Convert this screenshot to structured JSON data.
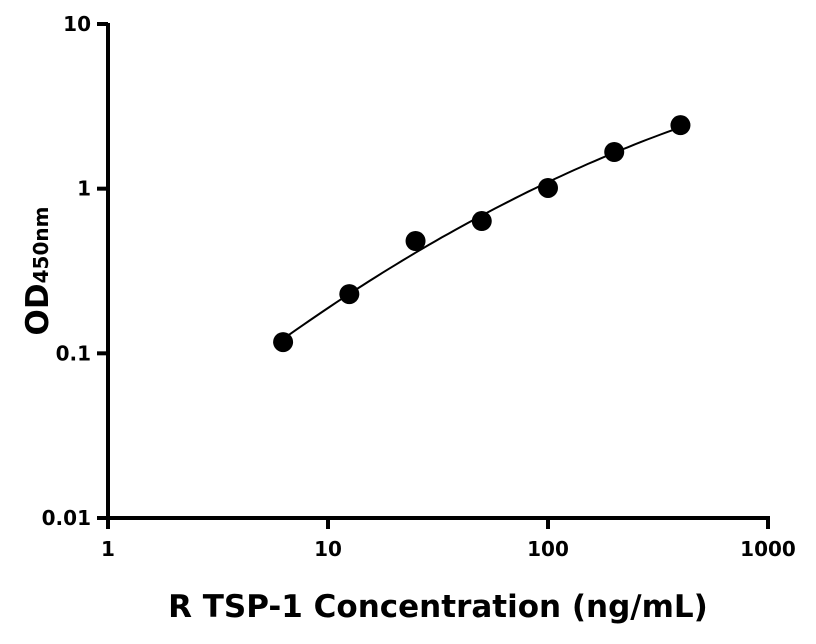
{
  "chart_data": {
    "type": "scatter",
    "title": "",
    "xlabel": "R TSP-1 Concentration (ng/mL)",
    "ylabel": {
      "main": "OD",
      "subscript": "450nm"
    },
    "xscale": "log",
    "yscale": "log",
    "xlim": [
      1,
      1000
    ],
    "ylim": [
      0.01,
      10
    ],
    "xticks": [
      "1",
      "10",
      "100",
      "1000"
    ],
    "yticks": [
      "0.01",
      "0.1",
      "1",
      "10"
    ],
    "grid": false,
    "legend": "none",
    "fit_line": true,
    "marker_color": "#000000",
    "series": [
      {
        "x": [
          6.25,
          12.5,
          25,
          50,
          100,
          200,
          400
        ],
        "y": [
          0.117,
          0.229,
          0.481,
          0.636,
          1.01,
          1.67,
          2.43
        ]
      }
    ]
  }
}
